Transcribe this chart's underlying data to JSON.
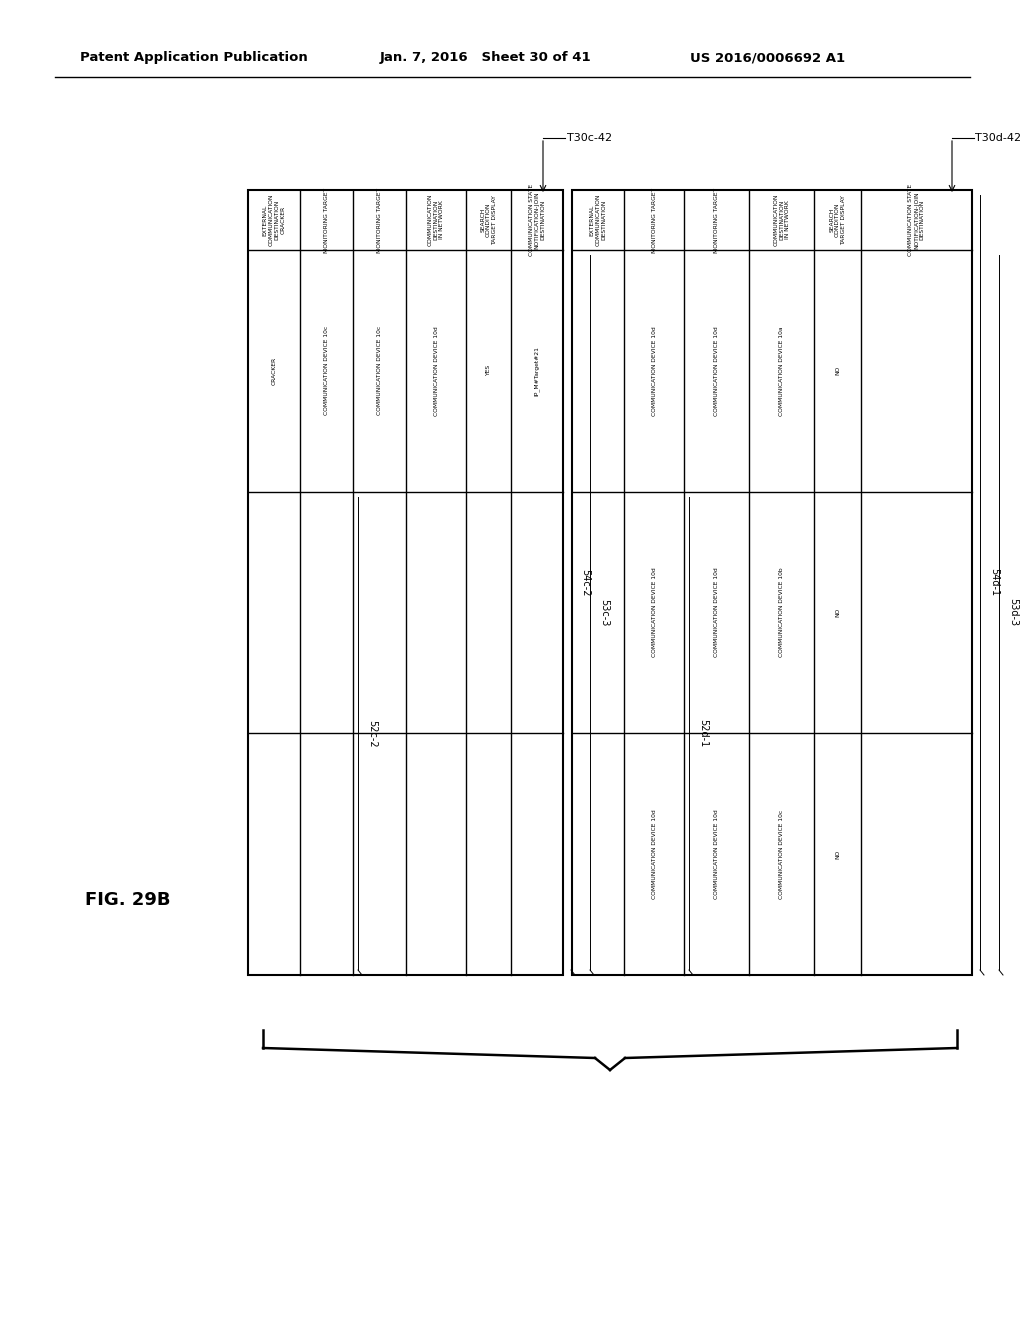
{
  "header_left": "Patent Application Publication",
  "header_mid": "Jan. 7, 2016   Sheet 30 of 41",
  "header_right": "US 2016/0006692 A1",
  "fig_label": "FIG. 29B",
  "background": "#ffffff",
  "left_table_label": "T30c-42",
  "right_table_label": "T30d-42",
  "left_sub_labels": [
    "54c-2",
    "53c-3",
    "52c-2"
  ],
  "right_sub_labels": [
    "54d-1",
    "53d-3",
    "52d-1"
  ],
  "left_col_headers": [
    "EXTERNAL\nCOMMUNICATION\nDESTINATION\nCRACKER",
    "MONITORING TARGET",
    "MONITORING TARGET",
    "COMMUNICATION\nDESTINATION\nIN NETWORK",
    "SEARCH\nCONDITION\nTARGET DISPLAY",
    "COMMUNICATION STATE\nNOTIFICATION-JOIN\nDESTINATION"
  ],
  "right_col_headers": [
    "EXTERNAL\nCOMMUNICATION\nDESTINATION",
    "MONITORING TARGET",
    "MONITORING TARGET",
    "COMMUNICATION\nDESTINATION\nIN NETWORK",
    "SEARCH\nCONDITION\nTARGET DISPLAY",
    "COMMUNICATION STATE\nNOTIFICATION-JOIN\nDESTINATION"
  ],
  "left_data": [
    [
      "CRACKER",
      "COMMUNICATION DEVICE 10c",
      "COMMUNICATION DEVICE 10c",
      "COMMUNICATION DEVICE 10d",
      "YES",
      "IP_M#Target#21"
    ],
    [
      "",
      "",
      "",
      "",
      "",
      ""
    ],
    [
      "",
      "",
      "",
      "",
      "",
      ""
    ]
  ],
  "right_data": [
    [
      "",
      "COMMUNICATION DEVICE 10d",
      "COMMUNICATION DEVICE 10d",
      "COMMUNICATION DEVICE 10a",
      "NO",
      ""
    ],
    [
      "",
      "COMMUNICATION DEVICE 10d",
      "COMMUNICATION DEVICE 10d",
      "COMMUNICATION DEVICE 10b",
      "NO",
      ""
    ],
    [
      "",
      "COMMUNICATION DEVICE 10d",
      "COMMUNICATION DEVICE 10d",
      "COMMUNICATION DEVICE 10c",
      "NO",
      ""
    ]
  ]
}
